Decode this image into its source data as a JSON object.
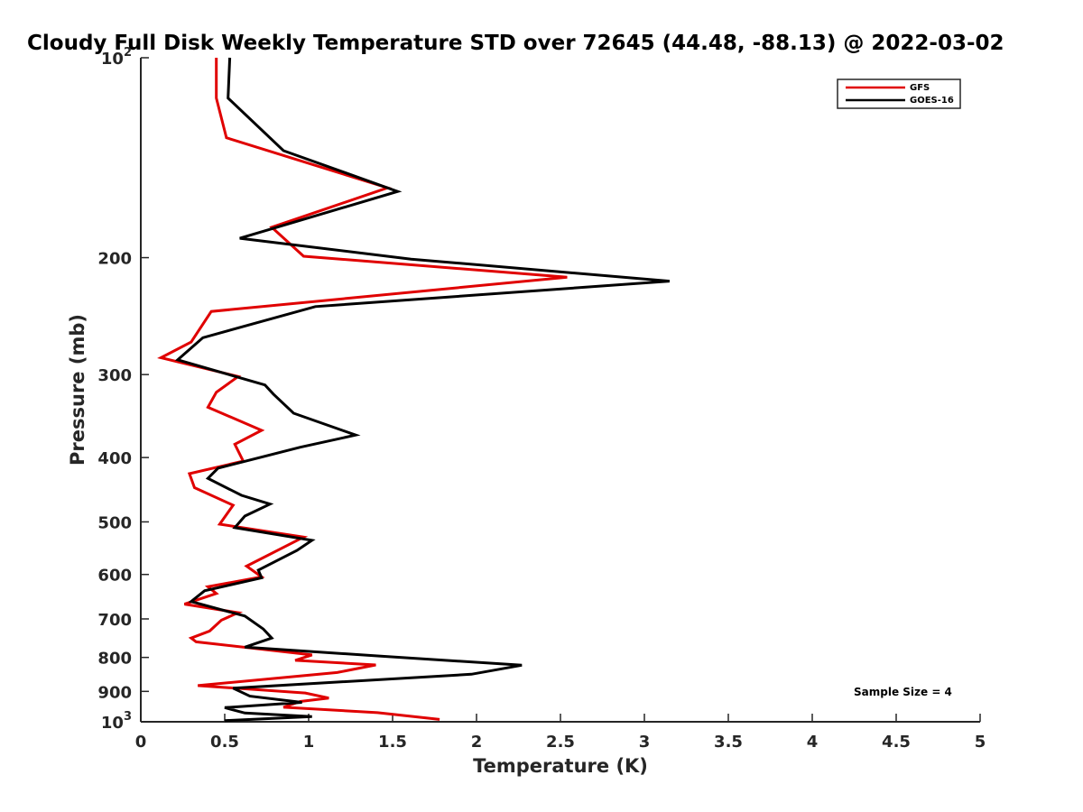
{
  "chart_data": {
    "type": "line",
    "title": "Cloudy Full Disk Weekly Temperature STD over 72645 (44.48, -88.13) @ 2022-03-02",
    "xlabel": "Temperature (K)",
    "ylabel": "Pressure (mb)",
    "xlim": [
      0,
      5
    ],
    "ylim": [
      100,
      1000
    ],
    "y_scale": "log",
    "y_reversed": true,
    "grid": false,
    "legend_position": "top-right",
    "x_ticks": [
      0,
      0.5,
      1,
      1.5,
      2,
      2.5,
      3,
      3.5,
      4,
      4.5,
      5
    ],
    "x_tick_labels": [
      "0",
      "0.5",
      "1",
      "1.5",
      "2",
      "2.5",
      "3",
      "3.5",
      "4",
      "4.5",
      "5"
    ],
    "y_ticks": [
      100,
      200,
      300,
      400,
      500,
      600,
      700,
      800,
      900,
      1000
    ],
    "y_tick_labels": [
      {
        "base": "10",
        "exp": "2"
      },
      {
        "base": "200",
        "exp": ""
      },
      {
        "base": "300",
        "exp": ""
      },
      {
        "base": "400",
        "exp": ""
      },
      {
        "base": "500",
        "exp": ""
      },
      {
        "base": "600",
        "exp": ""
      },
      {
        "base": "700",
        "exp": ""
      },
      {
        "base": "800",
        "exp": ""
      },
      {
        "base": "900",
        "exp": ""
      },
      {
        "base": "10",
        "exp": "3"
      }
    ],
    "series": [
      {
        "name": "GFS",
        "color": "#e00000",
        "points": [
          [
            0.45,
            100
          ],
          [
            0.45,
            115
          ],
          [
            0.51,
            132
          ],
          [
            1.47,
            157
          ],
          [
            0.78,
            180
          ],
          [
            0.97,
            199
          ],
          [
            2.54,
            214
          ],
          [
            0.42,
            241
          ],
          [
            0.3,
            268
          ],
          [
            0.12,
            283
          ],
          [
            0.58,
            302
          ],
          [
            0.45,
            319
          ],
          [
            0.4,
            336
          ],
          [
            0.72,
            364
          ],
          [
            0.56,
            382
          ],
          [
            0.61,
            405
          ],
          [
            0.29,
            423
          ],
          [
            0.32,
            444
          ],
          [
            0.55,
            472
          ],
          [
            0.47,
            504
          ],
          [
            0.97,
            527
          ],
          [
            0.63,
            583
          ],
          [
            0.72,
            605
          ],
          [
            0.4,
            626
          ],
          [
            0.45,
            641
          ],
          [
            0.26,
            665
          ],
          [
            0.58,
            685
          ],
          [
            0.48,
            703
          ],
          [
            0.41,
            730
          ],
          [
            0.3,
            748
          ],
          [
            0.33,
            758
          ],
          [
            1.02,
            793
          ],
          [
            0.92,
            808
          ],
          [
            1.4,
            821
          ],
          [
            1.17,
            843
          ],
          [
            0.34,
            882
          ],
          [
            0.98,
            905
          ],
          [
            1.12,
            921
          ],
          [
            0.95,
            932
          ],
          [
            0.85,
            951
          ],
          [
            1.41,
            969
          ],
          [
            1.78,
            992
          ]
        ]
      },
      {
        "name": "GOES-16",
        "color": "#000000",
        "points": [
          [
            0.53,
            100
          ],
          [
            0.52,
            115
          ],
          [
            0.85,
            138
          ],
          [
            1.53,
            159
          ],
          [
            0.59,
            187
          ],
          [
            1.61,
            201
          ],
          [
            3.15,
            217
          ],
          [
            1.04,
            237
          ],
          [
            0.37,
            264
          ],
          [
            0.22,
            285
          ],
          [
            0.74,
            311
          ],
          [
            0.79,
            321
          ],
          [
            0.91,
            343
          ],
          [
            1.28,
            370
          ],
          [
            0.95,
            386
          ],
          [
            0.46,
            415
          ],
          [
            0.4,
            430
          ],
          [
            0.6,
            456
          ],
          [
            0.77,
            470
          ],
          [
            0.62,
            490
          ],
          [
            0.56,
            510
          ],
          [
            1.02,
            533
          ],
          [
            0.93,
            552
          ],
          [
            0.7,
            591
          ],
          [
            0.72,
            607
          ],
          [
            0.38,
            635
          ],
          [
            0.3,
            659
          ],
          [
            0.62,
            693
          ],
          [
            0.73,
            725
          ],
          [
            0.78,
            748
          ],
          [
            0.62,
            772
          ],
          [
            1.42,
            796
          ],
          [
            2.27,
            822
          ],
          [
            1.97,
            848
          ],
          [
            0.55,
            890
          ],
          [
            0.65,
            915
          ],
          [
            0.96,
            935
          ],
          [
            0.5,
            952
          ],
          [
            0.62,
            970
          ],
          [
            1.02,
            982
          ],
          [
            0.5,
            996
          ]
        ]
      }
    ],
    "annotations": [
      {
        "text": "Sample Size = 4",
        "x": 4.3,
        "y": 900
      }
    ]
  }
}
